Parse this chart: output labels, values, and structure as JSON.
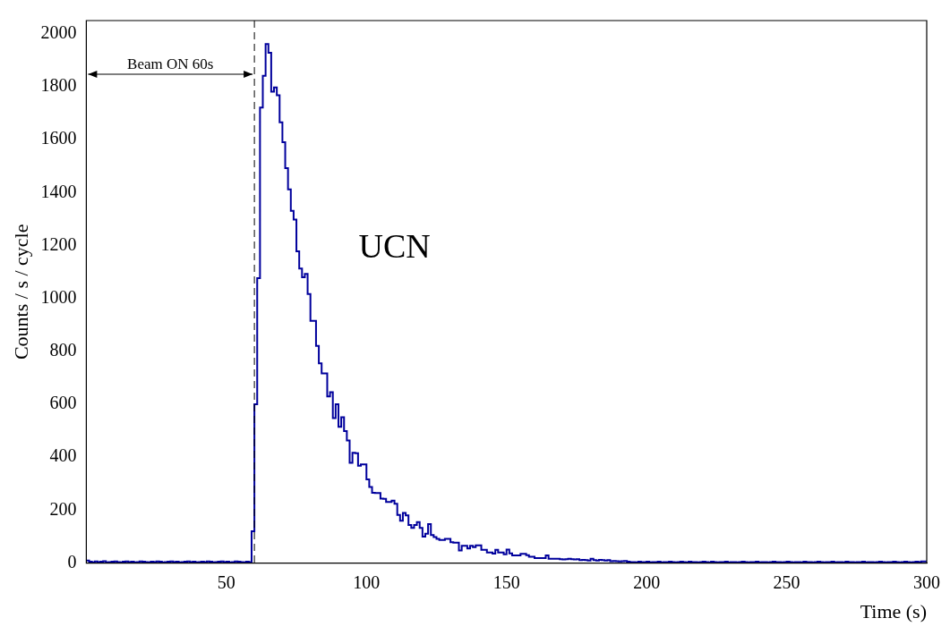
{
  "chart_data": {
    "type": "histogram",
    "xlabel": "Time (s)",
    "ylabel": "Counts / s / cycle",
    "color": "#00009c",
    "bins": [
      0,
      1,
      2,
      3,
      4,
      5,
      6,
      7,
      8,
      9,
      10,
      11,
      12,
      13,
      14,
      15,
      16,
      17,
      18,
      19,
      20,
      21,
      22,
      23,
      24,
      25,
      26,
      27,
      28,
      29,
      30,
      31,
      32,
      33,
      34,
      35,
      36,
      37,
      38,
      39,
      40,
      41,
      42,
      43,
      44,
      45,
      46,
      47,
      48,
      49,
      50,
      51,
      52,
      53,
      54,
      55,
      56,
      57,
      58,
      59,
      60,
      61,
      62,
      63,
      64,
      65,
      66,
      67,
      68,
      69,
      70,
      71,
      72,
      73,
      74,
      75,
      76,
      77,
      78,
      79,
      80,
      81,
      82,
      83,
      84,
      85,
      86,
      87,
      88,
      89,
      90,
      91,
      92,
      93,
      94,
      95,
      96,
      97,
      98,
      99,
      100,
      101,
      102,
      103,
      104,
      105,
      106,
      107,
      108,
      109,
      110,
      111,
      112,
      113,
      114,
      115,
      116,
      117,
      118,
      119,
      120,
      121,
      122,
      123,
      124,
      125,
      126,
      127,
      128,
      129,
      130,
      131,
      132,
      133,
      134,
      135,
      136,
      137,
      138,
      139,
      140,
      141,
      142,
      143,
      144,
      145,
      146,
      147,
      148,
      149,
      150,
      151,
      152,
      153,
      154,
      155,
      156,
      157,
      158,
      159,
      160,
      161,
      162,
      163,
      164,
      165,
      166,
      167,
      168,
      169,
      170,
      171,
      172,
      173,
      174,
      175,
      176,
      177,
      178,
      179,
      180,
      181,
      182,
      183,
      184,
      185,
      186,
      187,
      188,
      189,
      190,
      191,
      192,
      193,
      194,
      195,
      196,
      197,
      198,
      199,
      200,
      201,
      202,
      203,
      204,
      205,
      206,
      207,
      208,
      209,
      210,
      211,
      212,
      213,
      214,
      215,
      216,
      217,
      218,
      219,
      220,
      221,
      222,
      223,
      224,
      225,
      226,
      227,
      228,
      229,
      230,
      231,
      232,
      233,
      234,
      235,
      236,
      237,
      238,
      239,
      240,
      241,
      242,
      243,
      244,
      245,
      246,
      247,
      248,
      249,
      250,
      251,
      252,
      253,
      254,
      255,
      256,
      257,
      258,
      259,
      260,
      261,
      262,
      263,
      264,
      265,
      266,
      267,
      268,
      269,
      270,
      271,
      272,
      273,
      274,
      275,
      276,
      277,
      278,
      279,
      280,
      281,
      282,
      283,
      284,
      285,
      286,
      287,
      288,
      289,
      290,
      291,
      292,
      293,
      294,
      295,
      296,
      297,
      298,
      299,
      300
    ],
    "values": [
      8,
      10,
      5,
      3,
      6,
      4,
      5,
      7,
      3,
      4,
      5,
      6,
      4,
      3,
      5,
      6,
      4,
      5,
      3,
      4,
      6,
      5,
      4,
      3,
      5,
      4,
      6,
      5,
      3,
      4,
      5,
      6,
      4,
      5,
      3,
      4,
      5,
      6,
      4,
      5,
      3,
      4,
      5,
      4,
      6,
      5,
      3,
      4,
      5,
      6,
      4,
      5,
      3,
      4,
      6,
      5,
      4,
      3,
      5,
      4,
      120,
      600,
      1077,
      1721,
      1841,
      1961,
      1928,
      1781,
      1797,
      1768,
      1666,
      1590,
      1492,
      1412,
      1331,
      1298,
      1178,
      1113,
      1080,
      1093,
      1017,
      915,
      915,
      821,
      755,
      717,
      717,
      630,
      646,
      548,
      600,
      515,
      551,
      499,
      463,
      379,
      417,
      415,
      368,
      373,
      373,
      316,
      288,
      266,
      265,
      265,
      244,
      243,
      231,
      231,
      236,
      224,
      182,
      160,
      190,
      180,
      144,
      133,
      144,
      155,
      133,
      100,
      111,
      147,
      106,
      98,
      92,
      87,
      87,
      92,
      92,
      79,
      77,
      77,
      48,
      65,
      65,
      55,
      65,
      60,
      67,
      67,
      50,
      50,
      40,
      40,
      36,
      50,
      40,
      40,
      33,
      51,
      37,
      29,
      29,
      29,
      35,
      35,
      30,
      24,
      24,
      19,
      19,
      19,
      19,
      29,
      16,
      16,
      16,
      16,
      15,
      14,
      15,
      16,
      15,
      14,
      15,
      11,
      12,
      11,
      10,
      16,
      11,
      10,
      12,
      11,
      10,
      11,
      7,
      8,
      7,
      6,
      7,
      8,
      5,
      4,
      4,
      3,
      5,
      4,
      4,
      5,
      3,
      4,
      4,
      5,
      3,
      4,
      4,
      5,
      4,
      3,
      4,
      5,
      4,
      3,
      5,
      4,
      4,
      3,
      4,
      5,
      4,
      3,
      5,
      4,
      3,
      4,
      4,
      5,
      3,
      4,
      4,
      3,
      4,
      5,
      4,
      3,
      4,
      4,
      5,
      3,
      4,
      4,
      3,
      4,
      5,
      4,
      4,
      3,
      4,
      5,
      4,
      3,
      4,
      4,
      3,
      5,
      4,
      4,
      3,
      4,
      5,
      4,
      3,
      4,
      4,
      5,
      3,
      4,
      4,
      3,
      5,
      4,
      4,
      3,
      4,
      4,
      5,
      3,
      4,
      4,
      3,
      4,
      5,
      4,
      3,
      4,
      4,
      5,
      4,
      3,
      4,
      5,
      4,
      3,
      4,
      5,
      4,
      6
    ],
    "xlim": [
      0,
      300
    ],
    "xticks": [
      50,
      100,
      150,
      200,
      250,
      300
    ],
    "ylim": [
      0,
      2050
    ],
    "yticks": [
      0,
      200,
      400,
      600,
      800,
      1000,
      1200,
      1400,
      1600,
      1800,
      2000
    ],
    "grid": false,
    "legend": false,
    "ref_lines": [
      {
        "axis": "x",
        "value": 60,
        "label": "Beam ON 60s",
        "line_style": "dashed",
        "color": "#000000"
      }
    ],
    "annotations": [
      "UCN"
    ]
  }
}
